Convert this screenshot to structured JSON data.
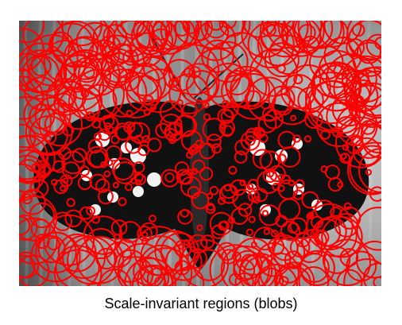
{
  "caption": "Scale-invariant regions (blobs)",
  "image": {
    "subject": "butterfly-photo",
    "mode": "grayscale",
    "overlay": {
      "marker_shape": "circle",
      "marker_color": "#ff0000"
    }
  },
  "colors": {
    "background": "#ffffff",
    "overlay": "#ff0000",
    "wing_dark": "#111111",
    "spot_light": "#ffffff",
    "photo_bg": "#bdbdbd"
  }
}
